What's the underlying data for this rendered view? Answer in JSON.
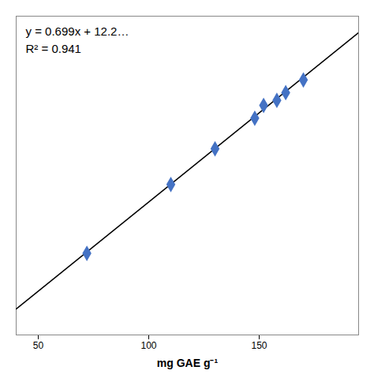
{
  "chart_data": {
    "type": "scatter",
    "x": [
      72,
      110,
      130,
      148,
      152,
      158,
      162,
      170
    ],
    "values": [
      62,
      89,
      103,
      115,
      120,
      122,
      125,
      130
    ],
    "color": "#4472C4",
    "marker": "diamond",
    "trend_line": {
      "x": [
        40,
        195
      ],
      "values": [
        40.19,
        148.535
      ],
      "color": "black"
    },
    "annotations": [
      "y = 0.699x + 12.2…",
      "R² = 0.941"
    ],
    "xlabel": "mg GAE g⁻¹",
    "xlim": [
      40,
      195
    ],
    "ylim": [
      30,
      155
    ],
    "xticks": [
      50,
      100,
      150
    ],
    "tick_labels": "x"
  }
}
